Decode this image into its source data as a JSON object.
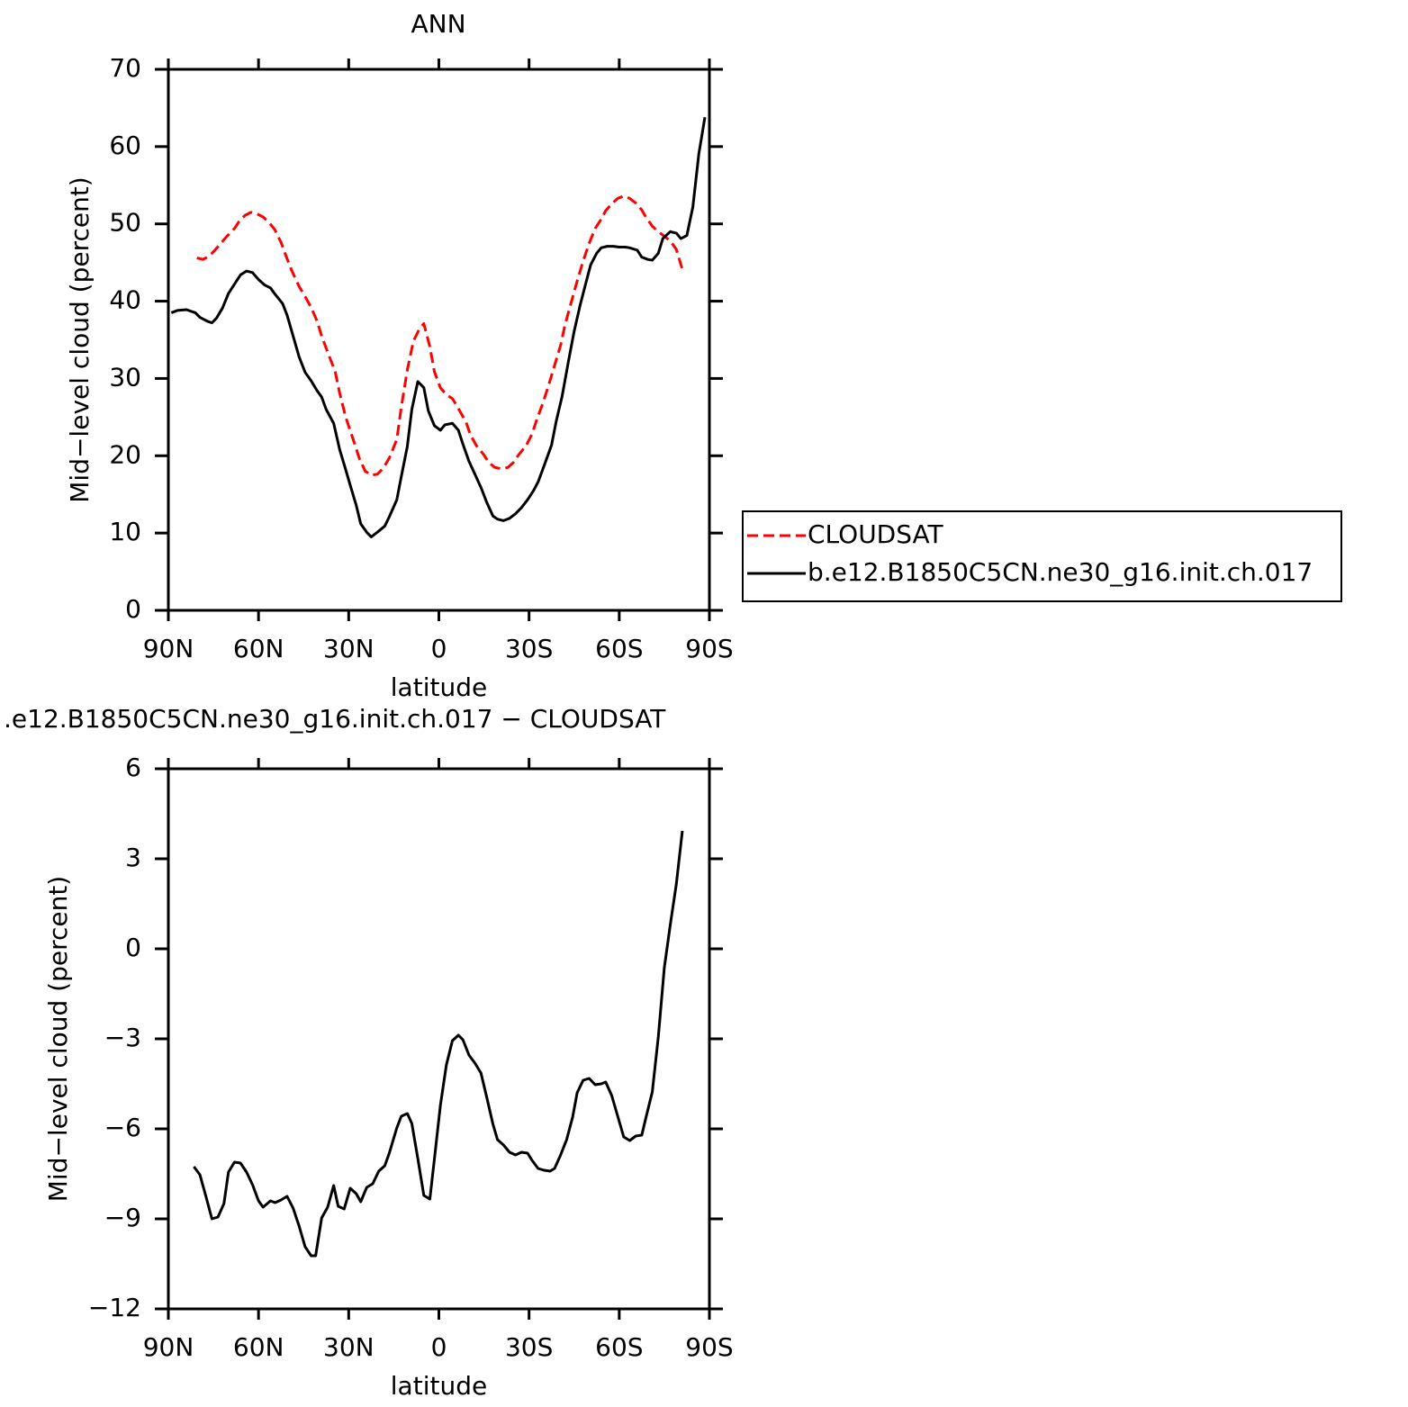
{
  "chart_data": [
    {
      "type": "line",
      "title": "ANN",
      "xlabel": "latitude",
      "ylabel": "Mid−level cloud (percent)",
      "xlim": [
        90,
        -90
      ],
      "xticks": [
        {
          "value": 90,
          "label": "90N"
        },
        {
          "value": 60,
          "label": "60N"
        },
        {
          "value": 30,
          "label": "30N"
        },
        0,
        {
          "value": -30,
          "label": "30S"
        },
        {
          "value": -60,
          "label": "60S"
        },
        {
          "value": -90,
          "label": "90S"
        }
      ],
      "ylim": [
        0,
        70
      ],
      "yticks": [
        0,
        10,
        20,
        30,
        40,
        50,
        60,
        70
      ],
      "legend": "right",
      "series": [
        {
          "name": "CLOUDSAT",
          "color": "#ff0000",
          "line_style": "dashed",
          "x": [
            80.5,
            78.5,
            76.5,
            74.5,
            72.5,
            70.5,
            68,
            66.5,
            64.5,
            62.5,
            60.5,
            58.5,
            56.5,
            54.5,
            52.5,
            51,
            49,
            46.5,
            44.5,
            42.5,
            40.5,
            39,
            37,
            34.5,
            33,
            31,
            28.5,
            26.5,
            24.5,
            22.5,
            20.5,
            18.5,
            16.5,
            14,
            12.5,
            10.5,
            8.5,
            6.5,
            5,
            3,
            1.5,
            -0.5,
            -2.5,
            -4.5,
            -6.5,
            -9,
            -10.5,
            -12.5,
            -15,
            -16.5,
            -18.5,
            -21,
            -23,
            -25,
            -26.5,
            -29,
            -31,
            -32.5,
            -34.5,
            -36.5,
            -38.5,
            -40.5,
            -42,
            -44,
            -46,
            -48,
            -50,
            -52,
            -54,
            -55.5,
            -57.5,
            -59.5,
            -61.5,
            -63.5,
            -65.5,
            -67.5,
            -69,
            -71,
            -73,
            -75,
            -77,
            -79,
            -81
          ],
          "values": [
            45.6,
            45.4,
            45.8,
            46.6,
            47.5,
            48.4,
            49.4,
            50.3,
            51.1,
            51.5,
            51.3,
            50.9,
            50.2,
            49.2,
            47.6,
            46.0,
            44.0,
            41.9,
            40.6,
            39.2,
            37.4,
            35.5,
            33.4,
            30.9,
            28.1,
            25.0,
            22.1,
            19.7,
            18.0,
            17.5,
            17.6,
            18.4,
            19.7,
            22.1,
            26.3,
            31.1,
            34.8,
            36.4,
            37.1,
            34.1,
            30.9,
            28.8,
            27.9,
            27.4,
            26.1,
            24.4,
            22.7,
            21.3,
            20.1,
            19.2,
            18.5,
            18.3,
            18.5,
            19.2,
            20.1,
            21.3,
            22.8,
            24.6,
            26.7,
            29.1,
            31.7,
            34.3,
            37.0,
            39.8,
            42.6,
            45.2,
            47.5,
            49.4,
            50.6,
            51.7,
            52.6,
            53.3,
            53.6,
            53.3,
            52.7,
            51.8,
            50.8,
            49.7,
            49.0,
            48.4,
            47.8,
            46.7,
            44.1
          ]
        },
        {
          "name": "b.e12.B1850C5CN.ne30_g16.init.ch.017",
          "color": "#000000",
          "line_style": "solid",
          "x": [
            89,
            87,
            84,
            81,
            79.5,
            77,
            75.5,
            74,
            72,
            70,
            67.5,
            66,
            64,
            62,
            60,
            58,
            56,
            54.5,
            52,
            50.5,
            48.5,
            46.5,
            44.5,
            42.5,
            40.5,
            39,
            37.5,
            35,
            33,
            31,
            29.5,
            27.5,
            26,
            24,
            22.5,
            20.5,
            18,
            16.5,
            14,
            12.5,
            10.5,
            9,
            7,
            5,
            3.5,
            1.5,
            -0.5,
            -2,
            -4.5,
            -6.5,
            -8,
            -10,
            -12,
            -14,
            -16,
            -18,
            -19.5,
            -21.5,
            -23.5,
            -25.5,
            -27.5,
            -29.5,
            -31.5,
            -33,
            -35,
            -37.5,
            -39,
            -41,
            -43,
            -45,
            -47,
            -49,
            -50.5,
            -52.5,
            -54,
            -56,
            -58,
            -60,
            -62,
            -63.5,
            -66,
            -67.5,
            -69.5,
            -71,
            -73,
            -74.5,
            -77,
            -79,
            -80.5,
            -82.5,
            -84.5,
            -86.5,
            -88.5
          ],
          "values": [
            38.5,
            38.8,
            38.9,
            38.5,
            37.9,
            37.4,
            37.2,
            37.8,
            39.1,
            41.0,
            42.5,
            43.4,
            43.9,
            43.7,
            42.8,
            42.1,
            41.7,
            40.9,
            39.7,
            38.2,
            35.5,
            32.8,
            30.8,
            29.7,
            28.4,
            27.6,
            26.0,
            24.2,
            20.8,
            18.2,
            16.2,
            13.6,
            11.2,
            10.1,
            9.5,
            10.1,
            10.9,
            12.1,
            14.3,
            17.3,
            21.2,
            26.0,
            29.6,
            28.8,
            25.8,
            23.9,
            23.3,
            24.0,
            24.2,
            23.3,
            21.5,
            19.3,
            17.6,
            15.9,
            13.9,
            12.2,
            11.8,
            11.6,
            11.9,
            12.5,
            13.3,
            14.3,
            15.5,
            16.6,
            18.7,
            21.4,
            24.4,
            27.7,
            32.0,
            36.1,
            39.5,
            42.5,
            44.7,
            46.2,
            46.9,
            47.1,
            47.1,
            47.0,
            47.0,
            46.9,
            46.6,
            45.7,
            45.4,
            45.3,
            46.2,
            48.1,
            49.0,
            48.8,
            48.1,
            48.5,
            52.2,
            59.1,
            63.8
          ]
        }
      ]
    },
    {
      "type": "line",
      "title": ".e12.B1850C5CN.ne30_g16.init.ch.017 − CLOUDSAT",
      "xlabel": "latitude",
      "ylabel": "Mid−level cloud (percent)",
      "xlim": [
        90,
        -90
      ],
      "xticks": [
        {
          "value": 90,
          "label": "90N"
        },
        {
          "value": 60,
          "label": "60N"
        },
        {
          "value": 30,
          "label": "30N"
        },
        0,
        {
          "value": -30,
          "label": "30S"
        },
        {
          "value": -60,
          "label": "60S"
        },
        {
          "value": -90,
          "label": "90S"
        }
      ],
      "ylim": [
        -12,
        6
      ],
      "yticks": [
        {
          "value": -12,
          "label": "−12"
        },
        {
          "value": -9,
          "label": "−9"
        },
        {
          "value": -6,
          "label": "−6"
        },
        {
          "value": -3,
          "label": "−3"
        },
        0,
        3,
        6
      ],
      "series": [
        {
          "color": "#000000",
          "line_style": "solid",
          "x": [
            81.5,
            79.5,
            77.5,
            75.5,
            73.5,
            71.5,
            70,
            68,
            66,
            64,
            62,
            60,
            58.5,
            56,
            54.5,
            52.5,
            50.5,
            48.5,
            46.5,
            44.5,
            42.5,
            41,
            39,
            37,
            35,
            33.5,
            31.5,
            29.5,
            27.5,
            26,
            24,
            22,
            20,
            18,
            16.5,
            14,
            12.5,
            10.5,
            9,
            7,
            5,
            3,
            1.5,
            -0.5,
            -2.5,
            -4.5,
            -6.5,
            -8,
            -10,
            -12,
            -14,
            -16,
            -18,
            -19.5,
            -21.5,
            -23.5,
            -25.5,
            -27.5,
            -29.5,
            -31,
            -33,
            -35,
            -37,
            -38.5,
            -40.5,
            -42.5,
            -44.5,
            -46,
            -48,
            -50,
            -52,
            -54,
            -55.5,
            -57.5,
            -59.5,
            -61.5,
            -63.5,
            -65.5,
            -67.5,
            -69,
            -71,
            -73,
            -75,
            -77,
            -79,
            -81
          ],
          "values": [
            -7.26,
            -7.53,
            -8.25,
            -9.0,
            -8.94,
            -8.49,
            -7.44,
            -7.11,
            -7.14,
            -7.44,
            -7.86,
            -8.4,
            -8.61,
            -8.4,
            -8.46,
            -8.37,
            -8.25,
            -8.64,
            -9.24,
            -9.93,
            -10.23,
            -10.23,
            -8.97,
            -8.61,
            -7.89,
            -8.58,
            -8.67,
            -7.98,
            -8.16,
            -8.43,
            -7.95,
            -7.83,
            -7.41,
            -7.23,
            -6.81,
            -5.97,
            -5.58,
            -5.49,
            -5.82,
            -6.99,
            -8.22,
            -8.34,
            -7.02,
            -5.22,
            -3.87,
            -3.06,
            -2.88,
            -3.03,
            -3.54,
            -3.81,
            -4.14,
            -4.98,
            -5.85,
            -6.36,
            -6.54,
            -6.78,
            -6.87,
            -6.78,
            -6.81,
            -7.05,
            -7.32,
            -7.38,
            -7.41,
            -7.32,
            -6.87,
            -6.36,
            -5.61,
            -4.8,
            -4.38,
            -4.32,
            -4.53,
            -4.5,
            -4.44,
            -4.89,
            -5.58,
            -6.27,
            -6.39,
            -6.24,
            -6.21,
            -5.58,
            -4.77,
            -2.94,
            -0.63,
            0.81,
            2.16,
            3.93
          ]
        }
      ]
    }
  ]
}
